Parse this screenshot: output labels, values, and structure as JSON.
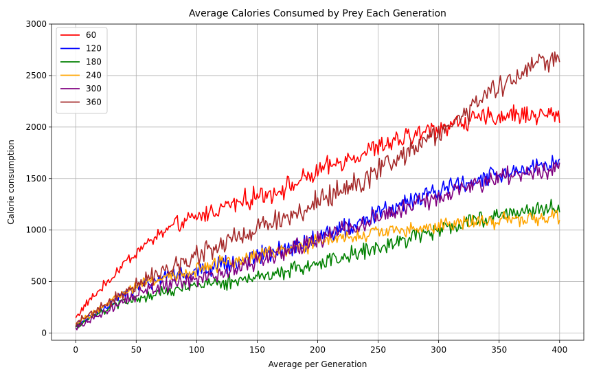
{
  "chart_data": {
    "type": "line",
    "title": "Average Calories Consumed by Prey Each Generation",
    "xlabel": "Average per Generation",
    "ylabel": "Calorie consumption",
    "xlim": [
      -20,
      420
    ],
    "ylim": [
      -70,
      3000
    ],
    "xticks": [
      0,
      50,
      100,
      150,
      200,
      250,
      300,
      350,
      400
    ],
    "yticks": [
      0,
      500,
      1000,
      1500,
      2000,
      2500,
      3000
    ],
    "grid": true,
    "legend_position": "top-left",
    "x_range": [
      0,
      400
    ],
    "series": [
      {
        "name": "60",
        "color": "#ff0000",
        "anchors": [
          [
            0,
            150
          ],
          [
            10,
            300
          ],
          [
            20,
            420
          ],
          [
            30,
            540
          ],
          [
            40,
            680
          ],
          [
            50,
            780
          ],
          [
            60,
            880
          ],
          [
            70,
            960
          ],
          [
            80,
            1030
          ],
          [
            90,
            1080
          ],
          [
            100,
            1120
          ],
          [
            120,
            1220
          ],
          [
            140,
            1290
          ],
          [
            160,
            1360
          ],
          [
            180,
            1440
          ],
          [
            200,
            1560
          ],
          [
            220,
            1670
          ],
          [
            240,
            1760
          ],
          [
            260,
            1840
          ],
          [
            280,
            1920
          ],
          [
            300,
            1990
          ],
          [
            320,
            2050
          ],
          [
            340,
            2090
          ],
          [
            360,
            2120
          ],
          [
            380,
            2120
          ],
          [
            400,
            2120
          ]
        ],
        "noise": 75
      },
      {
        "name": "120",
        "color": "#0000ff",
        "anchors": [
          [
            0,
            60
          ],
          [
            20,
            220
          ],
          [
            40,
            380
          ],
          [
            60,
            480
          ],
          [
            80,
            550
          ],
          [
            100,
            600
          ],
          [
            120,
            650
          ],
          [
            140,
            710
          ],
          [
            160,
            770
          ],
          [
            180,
            850
          ],
          [
            200,
            920
          ],
          [
            220,
            1000
          ],
          [
            240,
            1100
          ],
          [
            260,
            1200
          ],
          [
            280,
            1300
          ],
          [
            300,
            1380
          ],
          [
            320,
            1450
          ],
          [
            340,
            1520
          ],
          [
            360,
            1560
          ],
          [
            380,
            1600
          ],
          [
            400,
            1650
          ]
        ],
        "noise": 70
      },
      {
        "name": "180",
        "color": "#008000",
        "anchors": [
          [
            0,
            60
          ],
          [
            20,
            200
          ],
          [
            40,
            300
          ],
          [
            60,
            360
          ],
          [
            80,
            410
          ],
          [
            100,
            450
          ],
          [
            120,
            480
          ],
          [
            140,
            520
          ],
          [
            160,
            570
          ],
          [
            180,
            620
          ],
          [
            200,
            680
          ],
          [
            220,
            740
          ],
          [
            240,
            800
          ],
          [
            260,
            870
          ],
          [
            280,
            940
          ],
          [
            300,
            1000
          ],
          [
            320,
            1060
          ],
          [
            340,
            1120
          ],
          [
            360,
            1170
          ],
          [
            380,
            1200
          ],
          [
            400,
            1230
          ]
        ],
        "noise": 60
      },
      {
        "name": "240",
        "color": "#ffa500",
        "anchors": [
          [
            0,
            80
          ],
          [
            20,
            240
          ],
          [
            40,
            400
          ],
          [
            60,
            500
          ],
          [
            80,
            560
          ],
          [
            100,
            620
          ],
          [
            120,
            680
          ],
          [
            140,
            730
          ],
          [
            160,
            780
          ],
          [
            180,
            830
          ],
          [
            200,
            880
          ],
          [
            220,
            920
          ],
          [
            240,
            960
          ],
          [
            260,
            990
          ],
          [
            280,
            1020
          ],
          [
            300,
            1050
          ],
          [
            320,
            1070
          ],
          [
            340,
            1090
          ],
          [
            360,
            1100
          ],
          [
            380,
            1120
          ],
          [
            400,
            1150
          ]
        ],
        "noise": 60
      },
      {
        "name": "300",
        "color": "#800080",
        "anchors": [
          [
            0,
            60
          ],
          [
            20,
            180
          ],
          [
            40,
            320
          ],
          [
            60,
            420
          ],
          [
            80,
            470
          ],
          [
            100,
            520
          ],
          [
            120,
            580
          ],
          [
            140,
            660
          ],
          [
            160,
            740
          ],
          [
            180,
            820
          ],
          [
            200,
            900
          ],
          [
            220,
            990
          ],
          [
            240,
            1080
          ],
          [
            260,
            1170
          ],
          [
            280,
            1260
          ],
          [
            300,
            1330
          ],
          [
            320,
            1400
          ],
          [
            340,
            1470
          ],
          [
            360,
            1530
          ],
          [
            380,
            1570
          ],
          [
            400,
            1600
          ]
        ],
        "noise": 70
      },
      {
        "name": "360",
        "color": "#a52a2a",
        "anchors": [
          [
            0,
            100
          ],
          [
            20,
            240
          ],
          [
            40,
            400
          ],
          [
            60,
            530
          ],
          [
            80,
            640
          ],
          [
            100,
            760
          ],
          [
            120,
            860
          ],
          [
            140,
            960
          ],
          [
            160,
            1060
          ],
          [
            180,
            1160
          ],
          [
            200,
            1270
          ],
          [
            220,
            1390
          ],
          [
            240,
            1520
          ],
          [
            260,
            1660
          ],
          [
            280,
            1810
          ],
          [
            300,
            1950
          ],
          [
            320,
            2100
          ],
          [
            340,
            2300
          ],
          [
            360,
            2500
          ],
          [
            380,
            2600
          ],
          [
            400,
            2700
          ]
        ],
        "noise": 90
      }
    ]
  }
}
